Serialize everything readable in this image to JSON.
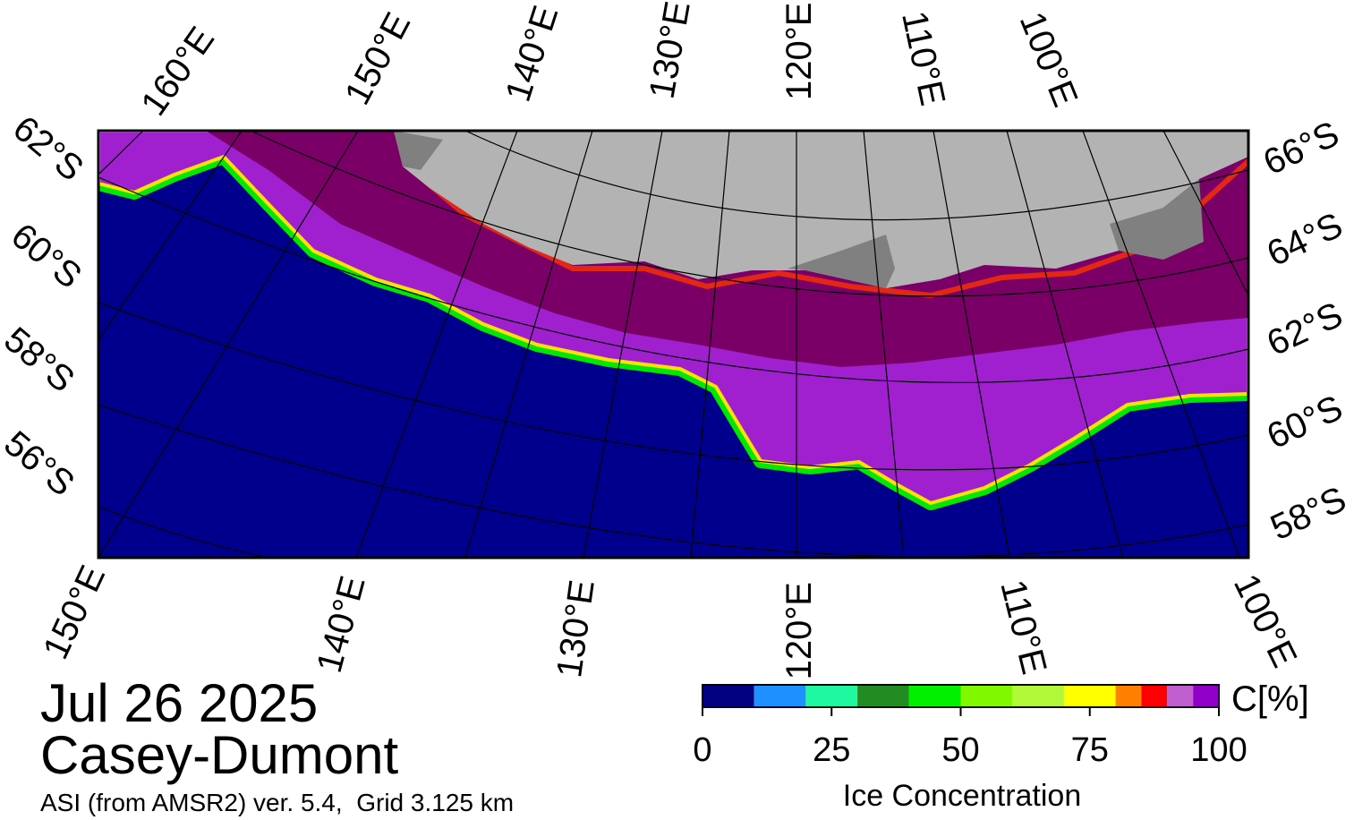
{
  "header": {
    "date": "Jul 26 2025",
    "region": "Casey-Dumont",
    "source": "ASI (from AMSR2) ver. 5.4,  Grid 3.125 km"
  },
  "map": {
    "top_longitude_labels": [
      "160°E",
      "150°E",
      "140°E",
      "130°E",
      "120°E",
      "110°E",
      "100°E"
    ],
    "bottom_longitude_labels": [
      "150°E",
      "140°E",
      "130°E",
      "120°E",
      "110°E",
      "100°E"
    ],
    "left_latitude_labels": [
      "62°S",
      "60°S",
      "58°S",
      "56°S"
    ],
    "right_latitude_labels": [
      "66°S",
      "64°S",
      "62°S",
      "60°S",
      "58°S"
    ]
  },
  "colorbar": {
    "bounds": [
      0,
      10,
      20,
      30,
      40,
      50,
      60,
      70,
      80,
      85,
      90,
      95,
      100
    ],
    "colors": [
      "#000080",
      "#1e90ff",
      "#20f8a0",
      "#228b22",
      "#00f000",
      "#80f800",
      "#b0f838",
      "#ffff00",
      "#ff8000",
      "#ff0000",
      "#c060d0",
      "#9000c8"
    ],
    "ticks": [
      0,
      25,
      50,
      75,
      100
    ],
    "label": "Ice Concentration",
    "unit": "C[%]"
  }
}
